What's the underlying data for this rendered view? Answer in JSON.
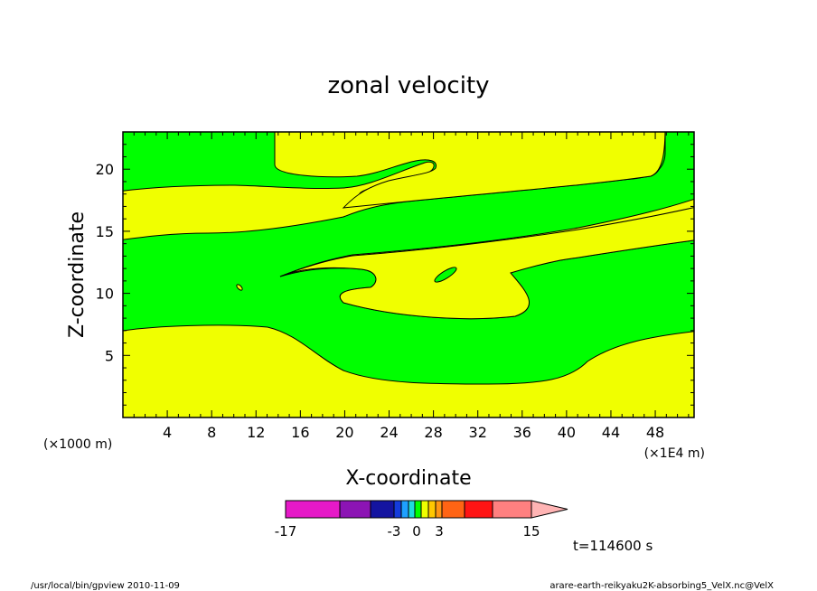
{
  "chart_data": {
    "type": "contour",
    "title": "zonal velocity",
    "xlabel": "X-coordinate",
    "ylabel": "Z-coordinate",
    "x_unit": "(×1000 m)",
    "x_exponent_note": "(×1E4 m)",
    "xlim": [
      0,
      51.5
    ],
    "ylim": [
      0,
      23
    ],
    "x_ticks": [
      4,
      8,
      12,
      16,
      20,
      24,
      28,
      32,
      36,
      40,
      44,
      48
    ],
    "y_ticks": [
      5,
      10,
      15,
      20
    ],
    "time_label": "t=114600 s",
    "colorbar": {
      "labels": [
        "-17",
        "-3",
        "0",
        "3",
        "15"
      ],
      "colors": [
        "#e619c8",
        "#8c14b4",
        "#1414a0",
        "#143cdc",
        "#1ea0ff",
        "#1edcdc",
        "#00ff00",
        "#f0ff00",
        "#ffc800",
        "#ff9614",
        "#ff6414",
        "#ff1414",
        "#ff8080",
        "#ffb4b4"
      ],
      "label_positions": [
        -17,
        -3,
        0,
        3,
        15
      ]
    },
    "fill_colors": {
      "positive": "#f0ff00",
      "negative": "#00ff00"
    },
    "regions": {
      "bottom_layer": "positive",
      "mid_lower_layer": "negative",
      "mid_layer": "positive",
      "upper_layer": "negative",
      "top_layer": "positive"
    }
  },
  "footer": {
    "left": "/usr/local/bin/gpview   2010-11-09",
    "right": "arare-earth-reikyaku2K-absorbing5_VelX.nc@VelX"
  }
}
